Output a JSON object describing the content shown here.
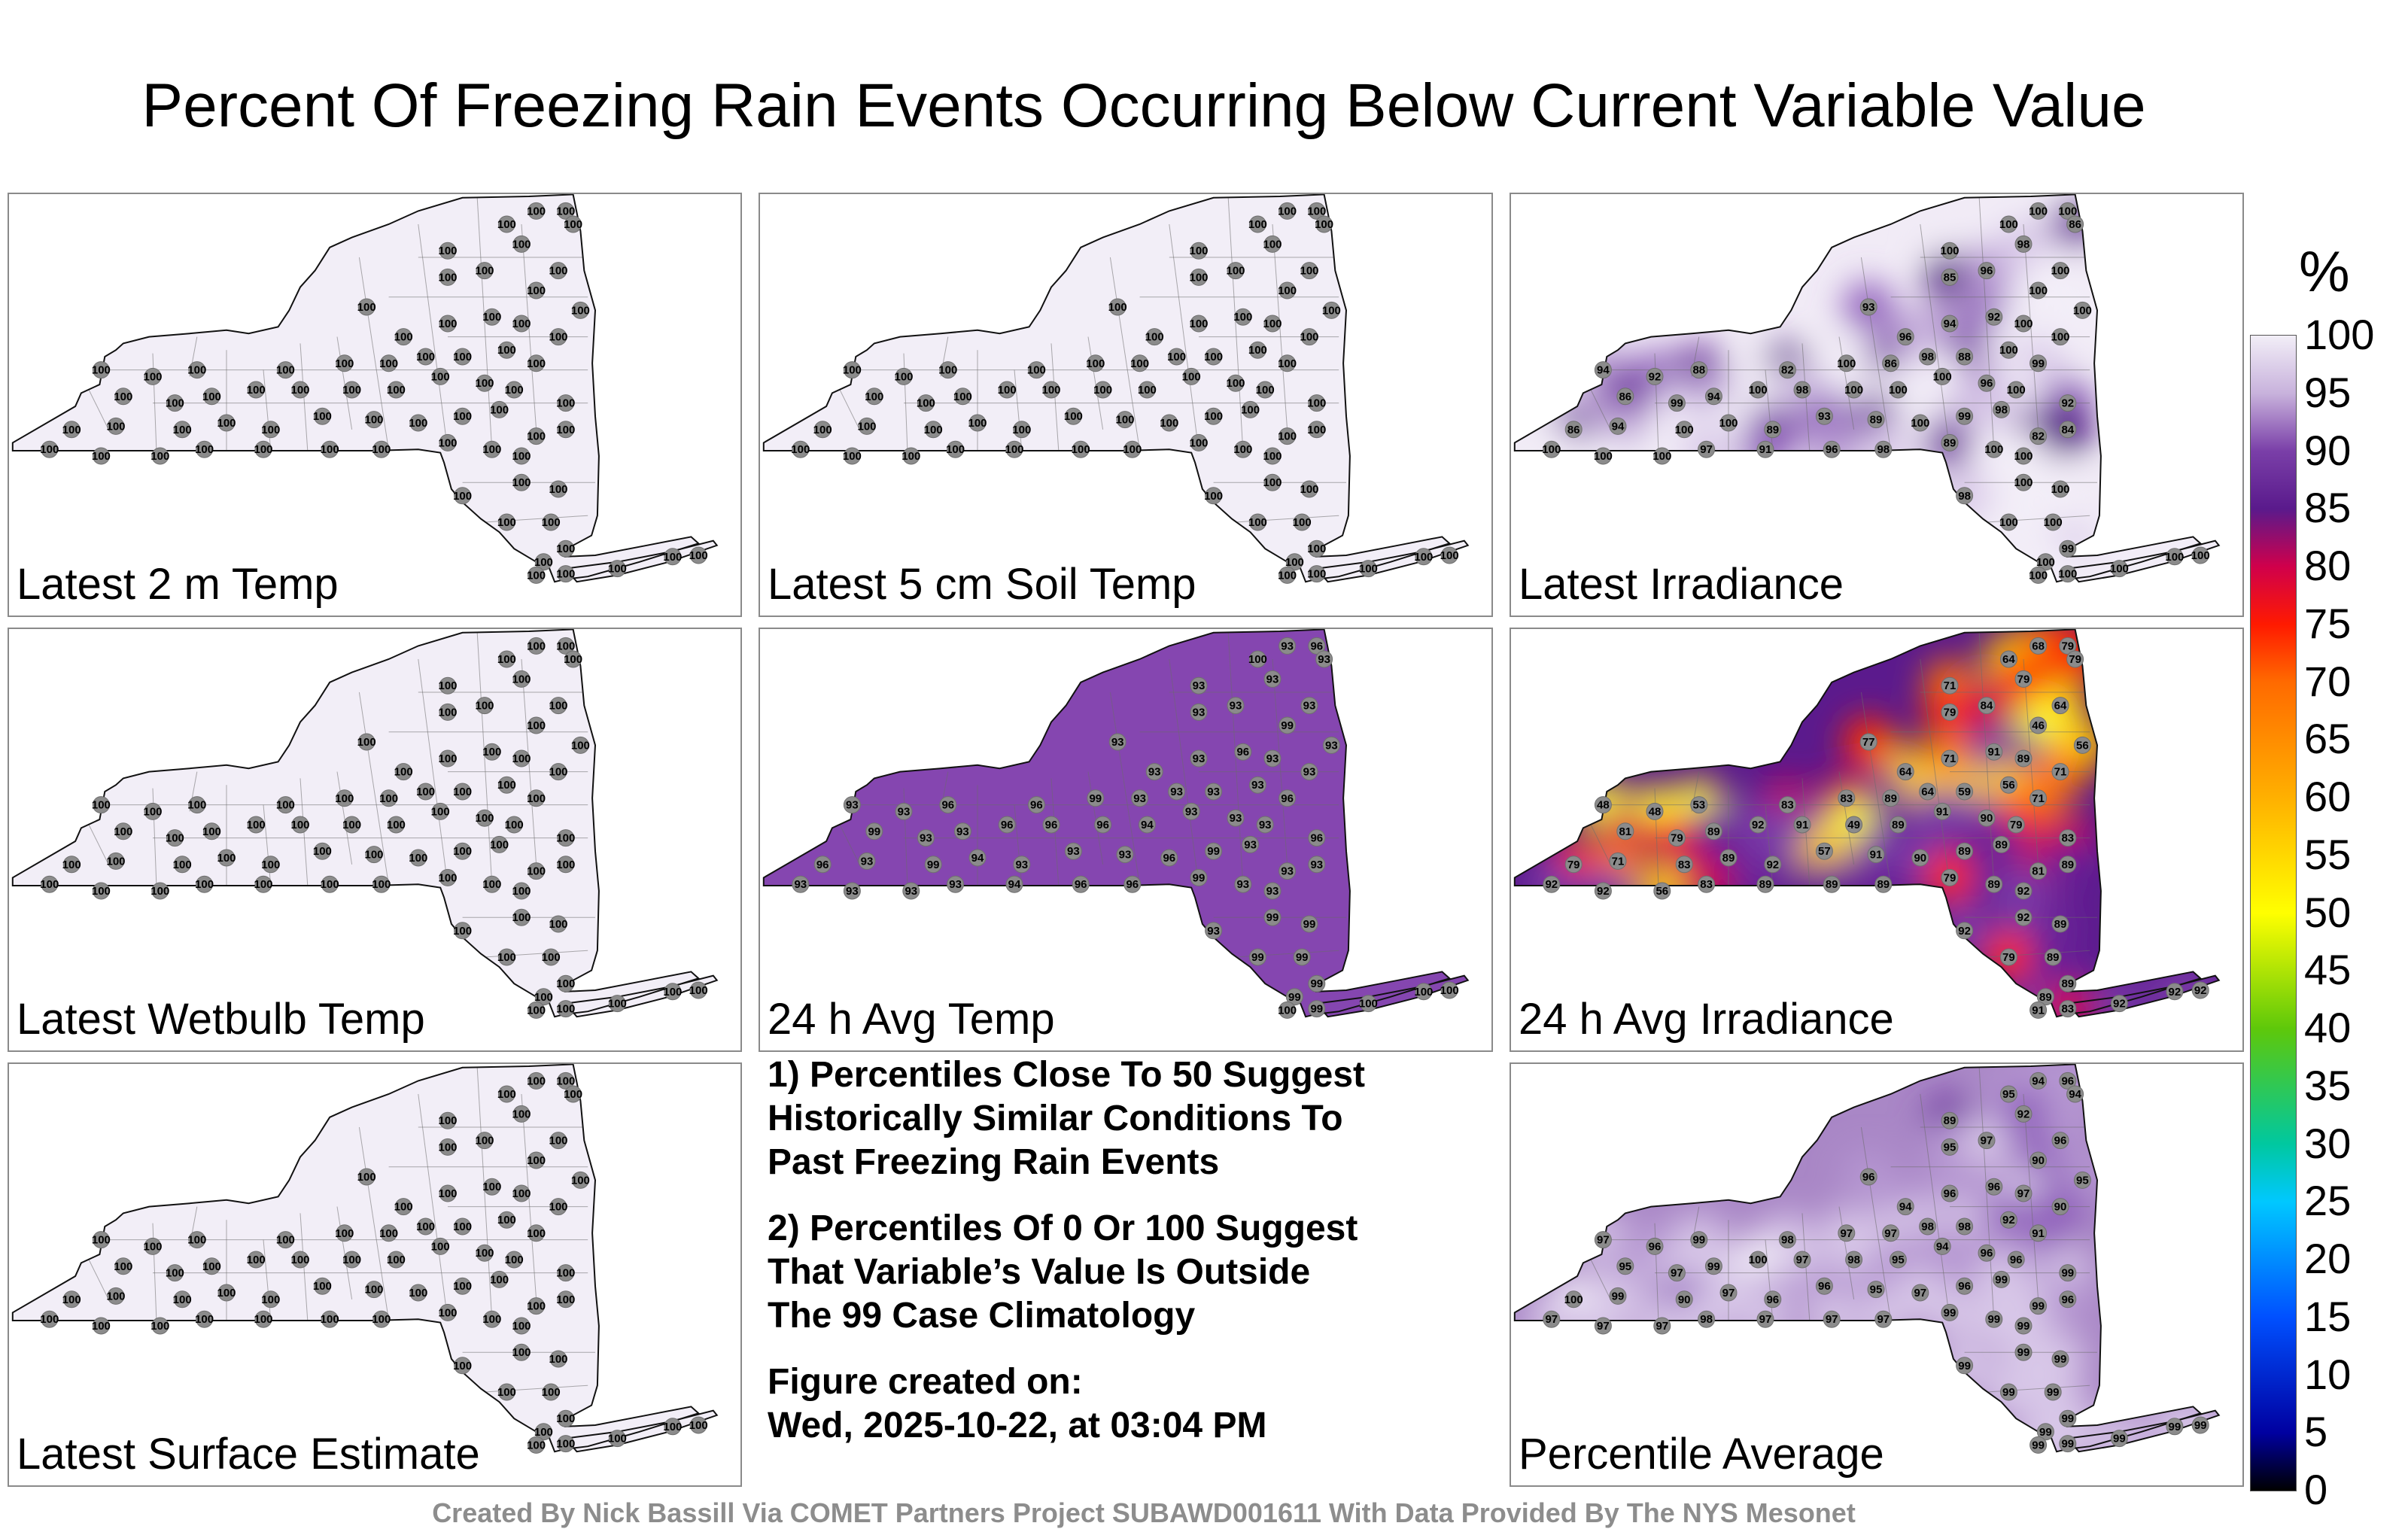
{
  "title": "Percent Of Freezing Rain Events Occurring Below Current Variable Value",
  "footer": "Created By Nick Bassill Via COMET Partners Project SUBAWD001611 With Data Provided By The NYS Mesonet",
  "colorbar": {
    "unit": "%",
    "ticks": [
      "100",
      "95",
      "90",
      "85",
      "80",
      "75",
      "70",
      "65",
      "60",
      "55",
      "50",
      "45",
      "40",
      "35",
      "30",
      "25",
      "20",
      "15",
      "10",
      "5",
      "0"
    ],
    "stops": [
      {
        "value": 100,
        "color": "#f2eef7"
      },
      {
        "value": 95,
        "color": "#c8b2dc"
      },
      {
        "value": 90,
        "color": "#7a3fa8"
      },
      {
        "value": 85,
        "color": "#5a1a8c"
      },
      {
        "value": 80,
        "color": "#d0004b"
      },
      {
        "value": 75,
        "color": "#ff1a00"
      },
      {
        "value": 70,
        "color": "#ff6a00"
      },
      {
        "value": 60,
        "color": "#ffb000"
      },
      {
        "value": 50,
        "color": "#ffff00"
      },
      {
        "value": 40,
        "color": "#5ec80a"
      },
      {
        "value": 30,
        "color": "#00c8a0"
      },
      {
        "value": 25,
        "color": "#00c8ff"
      },
      {
        "value": 15,
        "color": "#0050ff"
      },
      {
        "value": 5,
        "color": "#0000a0"
      },
      {
        "value": 0,
        "color": "#000000"
      }
    ]
  },
  "notes": [
    "1) Percentiles Close To 50 Suggest\nHistorically Similar Conditions To\nPast Freezing Rain Events",
    "2) Percentiles Of 0 Or 100 Suggest\nThat Variable’s Value Is Outside\nThe 99 Case Climatology",
    "Figure created on:\nWed, 2025-10-22, at 03:04 PM"
  ],
  "panels": [
    {
      "id": "p1",
      "label": "Latest 2 m Temp",
      "mode": "uniform",
      "fill": "#f2eef7",
      "values": [
        100,
        100,
        100,
        100,
        100,
        100,
        100,
        100,
        100,
        100,
        100,
        100,
        100,
        100,
        100,
        100,
        100,
        100,
        100,
        100,
        100,
        100,
        100,
        100,
        100,
        100,
        100,
        100,
        100,
        100,
        100,
        100,
        100,
        100,
        100,
        100,
        100,
        100,
        100,
        100,
        100,
        100,
        100,
        100,
        100,
        100,
        100,
        100,
        100,
        100,
        100,
        100,
        100,
        100,
        100,
        100,
        100,
        100,
        100,
        100,
        100,
        100,
        100,
        100,
        100,
        100,
        100,
        100,
        100,
        100,
        100,
        100
      ]
    },
    {
      "id": "p2",
      "label": "Latest 5 cm Soil Temp",
      "mode": "uniform",
      "fill": "#f2eef7",
      "values": [
        100,
        100,
        100,
        100,
        100,
        100,
        100,
        100,
        100,
        100,
        100,
        100,
        100,
        100,
        100,
        100,
        100,
        100,
        100,
        100,
        100,
        100,
        100,
        100,
        100,
        100,
        100,
        100,
        100,
        100,
        100,
        100,
        100,
        100,
        100,
        100,
        100,
        100,
        100,
        100,
        100,
        100,
        100,
        100,
        100,
        100,
        100,
        100,
        100,
        100,
        100,
        100,
        100,
        100,
        100,
        100,
        100,
        100,
        100,
        100,
        100,
        100,
        100,
        100,
        100,
        100,
        100,
        100,
        100,
        100,
        100,
        100
      ]
    },
    {
      "id": "p3",
      "label": "Latest Irradiance",
      "mode": "shaded",
      "fill": "#f1ebf6",
      "values": [
        100,
        100,
        86,
        100,
        100,
        93,
        85,
        96,
        98,
        100,
        100,
        100,
        96,
        94,
        92,
        100,
        100,
        94,
        92,
        88,
        82,
        100,
        86,
        98,
        88,
        100,
        99,
        86,
        99,
        94,
        100,
        98,
        100,
        100,
        100,
        96,
        100,
        92,
        86,
        94,
        100,
        100,
        89,
        93,
        89,
        100,
        99,
        98,
        82,
        84,
        100,
        100,
        100,
        97,
        91,
        96,
        98,
        89,
        100,
        100,
        98,
        100,
        100,
        100,
        100,
        99,
        100,
        100,
        100,
        100,
        100,
        100
      ]
    },
    {
      "id": "p4",
      "label": "Latest Wetbulb Temp",
      "mode": "uniform",
      "fill": "#f2eef7",
      "values": [
        100,
        100,
        100,
        100,
        100,
        100,
        100,
        100,
        100,
        100,
        100,
        100,
        100,
        100,
        100,
        100,
        100,
        100,
        100,
        100,
        100,
        100,
        100,
        100,
        100,
        100,
        100,
        100,
        100,
        100,
        100,
        100,
        100,
        100,
        100,
        100,
        100,
        100,
        100,
        100,
        100,
        100,
        100,
        100,
        100,
        100,
        100,
        100,
        100,
        100,
        100,
        100,
        100,
        100,
        100,
        100,
        100,
        100,
        100,
        100,
        100,
        100,
        100,
        100,
        100,
        100,
        100,
        100,
        100,
        100,
        100,
        100
      ]
    },
    {
      "id": "p5",
      "label": "24 h Avg Temp",
      "mode": "uniform",
      "fill": "#8546b0",
      "values": [
        93,
        96,
        93,
        100,
        93,
        93,
        93,
        93,
        93,
        93,
        99,
        93,
        93,
        93,
        96,
        93,
        93,
        93,
        93,
        96,
        96,
        99,
        93,
        93,
        93,
        93,
        96,
        99,
        93,
        93,
        96,
        96,
        96,
        94,
        93,
        93,
        93,
        96,
        96,
        93,
        99,
        94,
        93,
        93,
        93,
        96,
        99,
        93,
        93,
        93,
        93,
        93,
        93,
        93,
        94,
        96,
        96,
        99,
        93,
        93,
        93,
        99,
        99,
        99,
        99,
        99,
        99,
        100,
        99,
        100,
        100,
        100
      ]
    },
    {
      "id": "p6",
      "label": "24 h Avg Irradiance",
      "mode": "hot",
      "fill": "#5b1a8d",
      "values": [
        68,
        79,
        79,
        64,
        71,
        77,
        79,
        84,
        79,
        64,
        46,
        56,
        64,
        71,
        91,
        89,
        71,
        48,
        48,
        53,
        83,
        83,
        89,
        64,
        59,
        56,
        71,
        81,
        79,
        89,
        92,
        91,
        49,
        89,
        91,
        90,
        79,
        83,
        79,
        71,
        83,
        89,
        92,
        57,
        91,
        90,
        89,
        89,
        81,
        89,
        92,
        92,
        56,
        83,
        89,
        89,
        89,
        79,
        89,
        92,
        92,
        92,
        89,
        79,
        89,
        89,
        89,
        91,
        83,
        92,
        92,
        92
      ]
    },
    {
      "id": "p7",
      "label": "Latest Surface Estimate",
      "mode": "uniform",
      "fill": "#f2eef7",
      "values": [
        100,
        100,
        100,
        100,
        100,
        100,
        100,
        100,
        100,
        100,
        100,
        100,
        100,
        100,
        100,
        100,
        100,
        100,
        100,
        100,
        100,
        100,
        100,
        100,
        100,
        100,
        100,
        100,
        100,
        100,
        100,
        100,
        100,
        100,
        100,
        100,
        100,
        100,
        100,
        100,
        100,
        100,
        100,
        100,
        100,
        100,
        100,
        100,
        100,
        100,
        100,
        100,
        100,
        100,
        100,
        100,
        100,
        100,
        100,
        100,
        100,
        100,
        100,
        100,
        100,
        100,
        100,
        100,
        100,
        100,
        100,
        100
      ]
    },
    {
      "id": "p8",
      "label": "Percentile Average",
      "mode": "shaded",
      "fill": "#a987c6",
      "values": [
        94,
        96,
        94,
        95,
        89,
        96,
        95,
        97,
        92,
        96,
        90,
        95,
        94,
        96,
        96,
        97,
        90,
        97,
        96,
        99,
        98,
        97,
        97,
        98,
        98,
        92,
        91,
        95,
        97,
        99,
        100,
        97,
        98,
        95,
        94,
        96,
        96,
        99,
        100,
        99,
        90,
        97,
        96,
        96,
        95,
        97,
        96,
        99,
        99,
        96,
        97,
        97,
        97,
        98,
        97,
        97,
        97,
        99,
        99,
        99,
        99,
        99,
        99,
        99,
        99,
        99,
        99,
        99,
        99,
        99,
        99,
        99
      ]
    }
  ]
}
